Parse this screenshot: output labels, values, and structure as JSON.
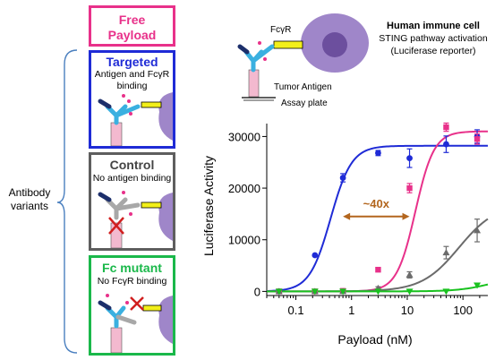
{
  "figure": {
    "free_payload": "Free\nPayload",
    "antibody_variants": "Antibody\nvariants",
    "panels": [
      {
        "title": "Targeted",
        "subtitle": "Antigen and FcγR\nbinding",
        "color": "#1f2bd6"
      },
      {
        "title": "Control",
        "subtitle": "No antigen binding",
        "color": "#5e5e5e"
      },
      {
        "title": "Fc mutant",
        "subtitle": "No FcγR binding",
        "color": "#1ab84a"
      }
    ],
    "schematic": {
      "receptor": "FcγR",
      "antigen": "Tumor Antigen",
      "plate": "Assay plate",
      "cell_title": "Human immune cell",
      "cell_line1": "STING pathway activation",
      "cell_line2": "(Luciferase reporter)"
    },
    "colors": {
      "pink": "#e8318a",
      "blue": "#1f2bd6",
      "gray": "#6b6b6b",
      "green": "#19c21f",
      "orange": "#b3661e",
      "cell": "#9f86c9"
    }
  },
  "chart_data": {
    "type": "line",
    "xlabel": "Payload (nM)",
    "ylabel": "Luciferase Activity",
    "xscale": "log",
    "xlim": [
      0.03,
      280
    ],
    "ylim": [
      -800,
      32500
    ],
    "xticks": [
      0.1,
      1,
      10,
      100
    ],
    "xtick_labels": [
      "0.1",
      "1",
      "10",
      "100"
    ],
    "yticks": [
      0,
      10000,
      20000,
      30000
    ],
    "ytick_labels": [
      "0",
      "10000",
      "20000",
      "30000"
    ],
    "annotation": "~40x",
    "series": [
      {
        "color": "#1f2bd6",
        "points": [
          {
            "x": 0.05,
            "y": 0
          },
          {
            "x": 0.22,
            "y": 7000
          },
          {
            "x": 0.7,
            "y": 22000
          },
          {
            "x": 3,
            "y": 26800
          },
          {
            "x": 11,
            "y": 25800
          },
          {
            "x": 50,
            "y": 28500
          },
          {
            "x": 180,
            "y": 30000
          }
        ],
        "errors": [
          0,
          0,
          800,
          500,
          1800,
          1600,
          1300
        ],
        "curve": {
          "bottom": 0,
          "top": 28200,
          "ec50": 0.42,
          "hill": 2.3
        }
      },
      {
        "color": "#e8318a",
        "points": [
          {
            "x": 0.05,
            "y": 0
          },
          {
            "x": 0.22,
            "y": 0
          },
          {
            "x": 0.7,
            "y": 100
          },
          {
            "x": 3,
            "y": 4200
          },
          {
            "x": 11,
            "y": 20000
          },
          {
            "x": 50,
            "y": 31800
          },
          {
            "x": 180,
            "y": 29500
          }
        ],
        "errors": [
          0,
          0,
          0,
          400,
          900,
          800,
          1000
        ],
        "curve": {
          "bottom": 0,
          "top": 31000,
          "ec50": 14,
          "hill": 2.6
        }
      },
      {
        "color": "#6b6b6b",
        "points": [
          {
            "x": 0.05,
            "y": 0
          },
          {
            "x": 0.22,
            "y": 0
          },
          {
            "x": 0.7,
            "y": 0
          },
          {
            "x": 3,
            "y": 600
          },
          {
            "x": 11,
            "y": 3200
          },
          {
            "x": 50,
            "y": 7500
          },
          {
            "x": 180,
            "y": 11800
          }
        ],
        "errors": [
          0,
          0,
          0,
          300,
          600,
          1200,
          2200
        ],
        "curve": {
          "bottom": 0,
          "top": 17000,
          "ec50": 85,
          "hill": 1.3
        }
      },
      {
        "color": "#19c21f",
        "points": [
          {
            "x": 0.05,
            "y": 0
          },
          {
            "x": 0.22,
            "y": 0
          },
          {
            "x": 0.7,
            "y": 0
          },
          {
            "x": 3,
            "y": 0
          },
          {
            "x": 11,
            "y": 0
          },
          {
            "x": 50,
            "y": 0
          },
          {
            "x": 180,
            "y": 1200
          }
        ],
        "errors": [
          0,
          0,
          0,
          0,
          0,
          0,
          0
        ],
        "curve": {
          "bottom": 0,
          "top": 3000,
          "ec50": 320,
          "hill": 1.5
        }
      }
    ]
  }
}
